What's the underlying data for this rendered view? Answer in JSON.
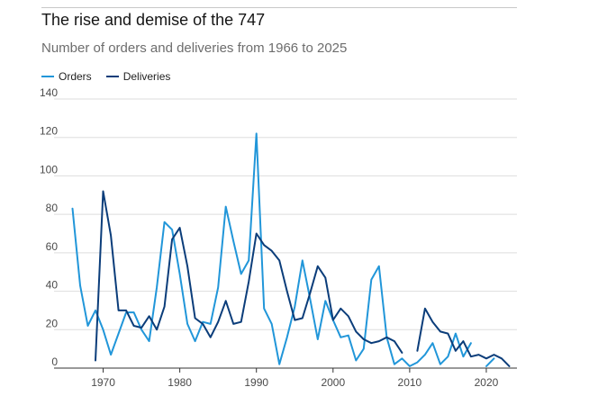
{
  "title": "The rise and demise of the 747",
  "subtitle": "Number of orders and deliveries from 1966 to 2025",
  "colors": {
    "orders": "#2196d9",
    "deliveries": "#0b3d7a",
    "grid": "#dedede",
    "axis": "#333333"
  },
  "chart_data": {
    "type": "line",
    "title": "The rise and demise of the 747",
    "subtitle": "Number of orders and deliveries from 1966 to 2025",
    "xlabel": "",
    "ylabel": "",
    "xlim": [
      1965,
      2024
    ],
    "ylim": [
      0,
      140
    ],
    "yticks": [
      0,
      20,
      40,
      60,
      80,
      100,
      120,
      140
    ],
    "xticks": [
      1970,
      1980,
      1990,
      2000,
      2010,
      2020
    ],
    "grid": "horizontal",
    "legend": "top-left",
    "series": [
      {
        "name": "Orders",
        "color": "#2196d9",
        "points": [
          [
            1966,
            83
          ],
          [
            1967,
            43
          ],
          [
            1968,
            22
          ],
          [
            1969,
            30
          ],
          [
            1970,
            20
          ],
          [
            1971,
            7
          ],
          [
            1972,
            18
          ],
          [
            1973,
            29
          ],
          [
            1974,
            29
          ],
          [
            1975,
            20
          ],
          [
            1976,
            14
          ],
          [
            1977,
            42
          ],
          [
            1978,
            76
          ],
          [
            1979,
            72
          ],
          [
            1980,
            49
          ],
          [
            1981,
            23
          ],
          [
            1982,
            14
          ],
          [
            1983,
            24
          ],
          [
            1984,
            23
          ],
          [
            1985,
            42
          ],
          [
            1986,
            84
          ],
          [
            1987,
            66
          ],
          [
            1988,
            49
          ],
          [
            1989,
            56
          ],
          [
            1990,
            122
          ],
          [
            1991,
            31
          ],
          [
            1992,
            23
          ],
          [
            1993,
            2
          ],
          [
            1994,
            16
          ],
          [
            1995,
            32
          ],
          [
            1996,
            56
          ],
          [
            1997,
            36
          ],
          [
            1998,
            15
          ],
          [
            1999,
            35
          ],
          [
            2000,
            25
          ],
          [
            2001,
            16
          ],
          [
            2002,
            17
          ],
          [
            2003,
            4
          ],
          [
            2004,
            10
          ],
          [
            2005,
            46
          ],
          [
            2006,
            53
          ],
          [
            2007,
            16
          ],
          [
            2008,
            2
          ],
          [
            2009,
            5
          ],
          [
            2010,
            1
          ],
          [
            2011,
            3
          ],
          [
            2012,
            7
          ],
          [
            2013,
            13
          ],
          [
            2014,
            2
          ],
          [
            2015,
            6
          ],
          [
            2016,
            18
          ],
          [
            2017,
            6
          ],
          [
            2018,
            13
          ],
          null,
          [
            2020,
            1
          ],
          [
            2021,
            5
          ]
        ]
      },
      {
        "name": "Deliveries",
        "color": "#0b3d7a",
        "points": [
          [
            1969,
            4
          ],
          [
            1970,
            92
          ],
          [
            1971,
            69
          ],
          [
            1972,
            30
          ],
          [
            1973,
            30
          ],
          [
            1974,
            22
          ],
          [
            1975,
            21
          ],
          [
            1976,
            27
          ],
          [
            1977,
            20
          ],
          [
            1978,
            32
          ],
          [
            1979,
            67
          ],
          [
            1980,
            73
          ],
          [
            1981,
            53
          ],
          [
            1982,
            26
          ],
          [
            1983,
            23
          ],
          [
            1984,
            16
          ],
          [
            1985,
            24
          ],
          [
            1986,
            35
          ],
          [
            1987,
            23
          ],
          [
            1988,
            24
          ],
          [
            1989,
            45
          ],
          [
            1990,
            70
          ],
          [
            1991,
            64
          ],
          [
            1992,
            61
          ],
          [
            1993,
            56
          ],
          [
            1994,
            40
          ],
          [
            1995,
            25
          ],
          [
            1996,
            26
          ],
          [
            1997,
            39
          ],
          [
            1998,
            53
          ],
          [
            1999,
            47
          ],
          [
            2000,
            25
          ],
          [
            2001,
            31
          ],
          [
            2002,
            27
          ],
          [
            2003,
            19
          ],
          [
            2004,
            15
          ],
          [
            2005,
            13
          ],
          [
            2006,
            14
          ],
          [
            2007,
            16
          ],
          [
            2008,
            14
          ],
          [
            2009,
            8
          ],
          null,
          [
            2011,
            9
          ],
          [
            2012,
            31
          ],
          [
            2013,
            24
          ],
          [
            2014,
            19
          ],
          [
            2015,
            18
          ],
          [
            2016,
            9
          ],
          [
            2017,
            14
          ],
          [
            2018,
            6
          ],
          [
            2019,
            7
          ],
          [
            2020,
            5
          ],
          [
            2021,
            7
          ],
          [
            2022,
            5
          ],
          [
            2023,
            1
          ]
        ]
      }
    ]
  }
}
